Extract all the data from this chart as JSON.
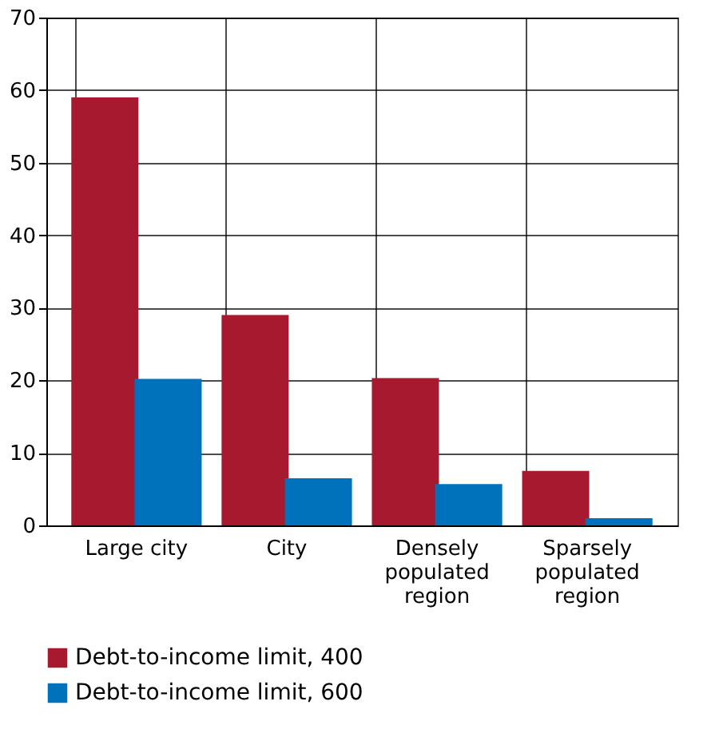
{
  "chart_data": {
    "type": "bar",
    "categories": [
      "Large city",
      "City",
      "Densely populated region",
      "Sparsely populated region"
    ],
    "series": [
      {
        "name": "Debt-to-income limit, 400",
        "color": "#a6192e",
        "values": [
          59,
          29,
          20.3,
          7.5
        ]
      },
      {
        "name": "Debt-to-income limit, 600",
        "color": "#0072bc",
        "values": [
          20.2,
          6.5,
          5.7,
          1.0
        ]
      }
    ],
    "ylim": [
      0,
      70
    ],
    "yticks": [
      0,
      10,
      20,
      30,
      40,
      50,
      60,
      70
    ],
    "grid": true,
    "legend": "bottom"
  }
}
